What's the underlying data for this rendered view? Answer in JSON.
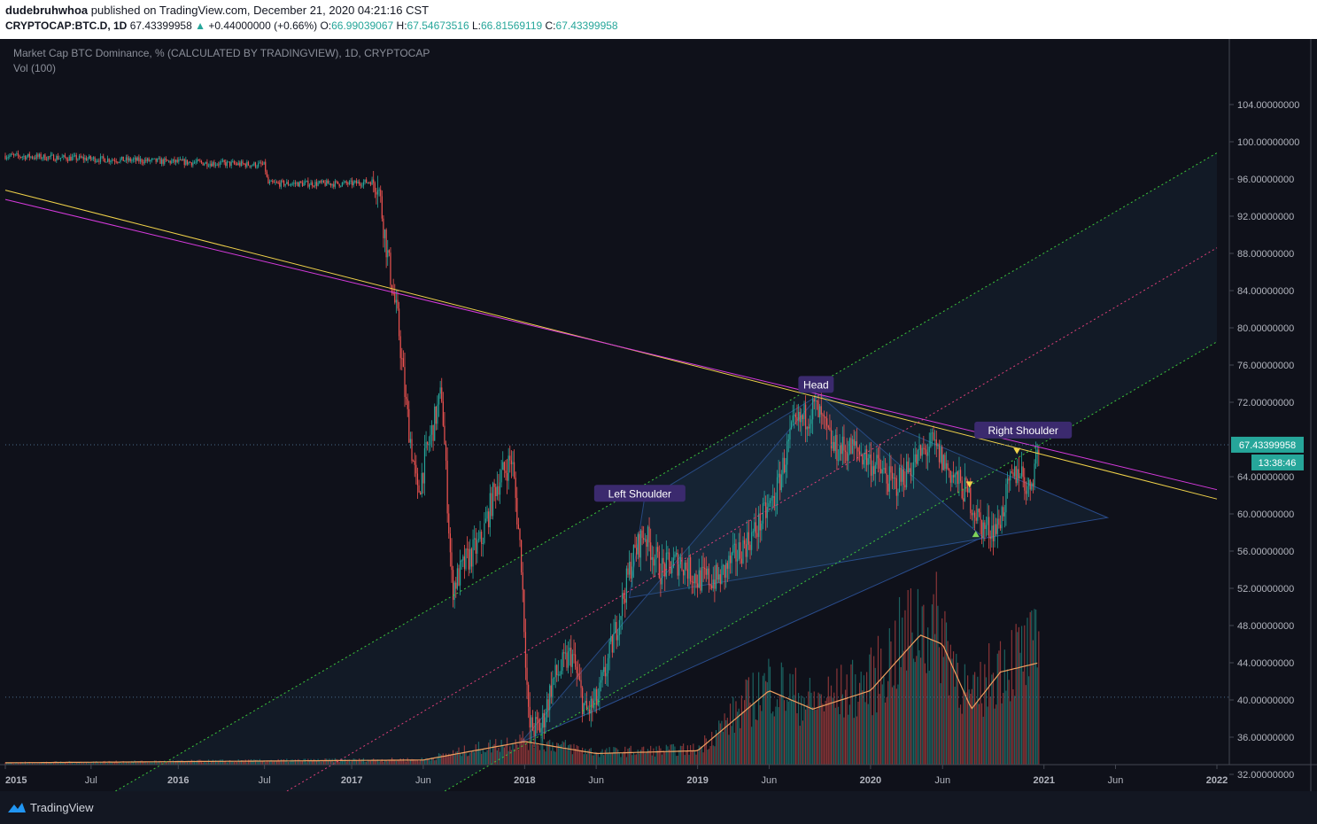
{
  "header": {
    "author": "dudebruhwhoa",
    "published_text": "published on TradingView.com, December 21, 2020 04:21:16 CST",
    "symbol": "CRYPTOCAP:BTC.D, 1D",
    "last": "67.43399958",
    "change": "+0.44000000 (+0.66%)",
    "open_label": "O:",
    "open": "66.99039067",
    "high_label": "H:",
    "high": "67.54673516",
    "low_label": "L:",
    "low": "66.81569119",
    "close_label": "C:",
    "close": "67.43399958"
  },
  "legend": {
    "title": "Market Cap BTC Dominance, % (CALCULATED BY TRADINGVIEW), 1D, CRYPTOCAP",
    "volume": "Vol (100)"
  },
  "footer": {
    "brand": "TradingView"
  },
  "colors": {
    "background": "#0f111a",
    "up": "#26a69a",
    "down": "#ef5350",
    "yellow_trend": "#f0d24a",
    "magenta_trend": "#d53adc",
    "channel_green": "#3cc83c",
    "channel_mid": "#e0407a",
    "label_bg": "#3b2a6e",
    "price_tag": "#26a69a",
    "vol_ma": "#f0a060"
  },
  "chart_data": {
    "type": "candlestick",
    "y_axis": {
      "ticks": [
        "104.00000000",
        "100.00000000",
        "96.00000000",
        "92.00000000",
        "88.00000000",
        "84.00000000",
        "80.00000000",
        "76.00000000",
        "72.00000000",
        "64.00000000",
        "60.00000000",
        "56.00000000",
        "52.00000000",
        "48.00000000",
        "44.00000000",
        "40.00000000",
        "36.00000000",
        "32.00000000"
      ],
      "range": [
        29,
        106
      ]
    },
    "x_axis": {
      "ticks": [
        "2015",
        "Jul",
        "2016",
        "Jul",
        "2017",
        "Jun",
        "2018",
        "Jun",
        "2019",
        "Jun",
        "2020",
        "Jun",
        "2021",
        "Jun",
        "2022"
      ],
      "tick_dates": [
        "2015-01-01",
        "2015-07-01",
        "2016-01-01",
        "2016-07-01",
        "2017-01-01",
        "2017-06-01",
        "2018-01-01",
        "2018-06-01",
        "2019-01-01",
        "2019-06-01",
        "2020-01-01",
        "2020-06-01",
        "2021-01-01",
        "2021-06-01",
        "2022-01-01"
      ]
    },
    "last_price_tag": "67.43399958",
    "countdown_tag": "13:38:46",
    "annotations": [
      {
        "text": "Left Shoulder",
        "date": "2018-09-01",
        "value": 61.5
      },
      {
        "text": "Head",
        "date": "2019-09-08",
        "value": 73.2
      },
      {
        "text": "Right Shoulder",
        "date": "2020-11-18",
        "value": 68.3
      }
    ],
    "key_points": [
      {
        "date": "2015-01-01",
        "value": 98.5
      },
      {
        "date": "2016-07-01",
        "value": 97.5
      },
      {
        "date": "2016-07-08",
        "value": 95.5
      },
      {
        "date": "2017-01-01",
        "value": 95.5
      },
      {
        "date": "2017-02-25",
        "value": 95.8
      },
      {
        "date": "2017-03-20",
        "value": 87
      },
      {
        "date": "2017-04-10",
        "value": 80
      },
      {
        "date": "2017-04-25",
        "value": 72
      },
      {
        "date": "2017-05-20",
        "value": 62
      },
      {
        "date": "2017-06-10",
        "value": 67
      },
      {
        "date": "2017-07-10",
        "value": 73
      },
      {
        "date": "2017-08-01",
        "value": 52
      },
      {
        "date": "2017-09-01",
        "value": 55
      },
      {
        "date": "2017-10-01",
        "value": 57
      },
      {
        "date": "2017-11-01",
        "value": 63
      },
      {
        "date": "2017-12-05",
        "value": 66
      },
      {
        "date": "2017-12-25",
        "value": 55
      },
      {
        "date": "2018-01-10",
        "value": 37
      },
      {
        "date": "2018-02-05",
        "value": 37
      },
      {
        "date": "2018-03-01",
        "value": 42
      },
      {
        "date": "2018-04-10",
        "value": 45
      },
      {
        "date": "2018-05-10",
        "value": 38.5
      },
      {
        "date": "2018-06-05",
        "value": 40
      },
      {
        "date": "2018-07-10",
        "value": 47
      },
      {
        "date": "2018-08-15",
        "value": 55
      },
      {
        "date": "2018-09-10",
        "value": 58
      },
      {
        "date": "2018-10-15",
        "value": 54
      },
      {
        "date": "2018-11-25",
        "value": 55
      },
      {
        "date": "2019-01-01",
        "value": 53
      },
      {
        "date": "2019-02-15",
        "value": 53
      },
      {
        "date": "2019-03-15",
        "value": 55
      },
      {
        "date": "2019-05-01",
        "value": 58
      },
      {
        "date": "2019-06-15",
        "value": 62
      },
      {
        "date": "2019-07-20",
        "value": 69
      },
      {
        "date": "2019-09-06",
        "value": 71.5
      },
      {
        "date": "2019-10-15",
        "value": 67
      },
      {
        "date": "2019-12-01",
        "value": 67
      },
      {
        "date": "2020-01-15",
        "value": 65
      },
      {
        "date": "2020-02-20",
        "value": 63
      },
      {
        "date": "2020-04-10",
        "value": 66
      },
      {
        "date": "2020-05-10",
        "value": 67.5
      },
      {
        "date": "2020-06-10",
        "value": 65
      },
      {
        "date": "2020-07-25",
        "value": 62
      },
      {
        "date": "2020-08-25",
        "value": 58.5
      },
      {
        "date": "2020-09-25",
        "value": 58.5
      },
      {
        "date": "2020-10-20",
        "value": 63
      },
      {
        "date": "2020-11-10",
        "value": 65
      },
      {
        "date": "2020-11-30",
        "value": 62.5
      },
      {
        "date": "2020-12-21",
        "value": 67.4
      }
    ],
    "volume_key_points": [
      {
        "date": "2015-01-01",
        "value": 0.2
      },
      {
        "date": "2017-06-01",
        "value": 0.5
      },
      {
        "date": "2018-01-01",
        "value": 2.5
      },
      {
        "date": "2018-06-01",
        "value": 1.2
      },
      {
        "date": "2019-01-01",
        "value": 1.5
      },
      {
        "date": "2019-06-01",
        "value": 8
      },
      {
        "date": "2019-09-01",
        "value": 6
      },
      {
        "date": "2020-01-01",
        "value": 8
      },
      {
        "date": "2020-04-15",
        "value": 14
      },
      {
        "date": "2020-06-01",
        "value": 13
      },
      {
        "date": "2020-08-01",
        "value": 6
      },
      {
        "date": "2020-10-01",
        "value": 10
      },
      {
        "date": "2020-12-21",
        "value": 11
      }
    ],
    "lines": [
      {
        "name": "yellow-trendline",
        "points": [
          [
            "2015-01-01",
            94.8
          ],
          [
            "2022-01-01",
            61.6
          ]
        ]
      },
      {
        "name": "magenta-trendline",
        "points": [
          [
            "2015-01-01",
            93.8
          ],
          [
            "2022-01-01",
            62.6
          ]
        ]
      },
      {
        "name": "channel-upper",
        "points": [
          [
            "2015-07-12",
            29
          ],
          [
            "2022-01-01",
            98.8
          ]
        ]
      },
      {
        "name": "channel-middle",
        "points": [
          [
            "2016-07-08",
            29
          ],
          [
            "2022-01-01",
            88.6
          ]
        ]
      },
      {
        "name": "channel-lower",
        "points": [
          [
            "2017-06-06",
            29
          ],
          [
            "2022-01-01",
            78.5
          ]
        ]
      }
    ],
    "triangles": [
      [
        [
          "2018-09-10",
          61.4
        ],
        [
          "2019-09-15",
          72.8
        ],
        [
          "2021-05-15",
          59.6
        ],
        [
          "2018-08-10",
          51
        ]
      ],
      [
        [
          "2017-12-25",
          35.5
        ],
        [
          "2019-09-15",
          72.8
        ],
        [
          "2020-08-25",
          57.5
        ],
        [
          "2018-06-05",
          39
        ]
      ]
    ],
    "markers": [
      {
        "type": "triangle-down",
        "date": "2020-07-28",
        "value": 63.2,
        "color": "#f0d24a"
      },
      {
        "type": "triangle-up",
        "date": "2020-08-10",
        "value": 57.8,
        "color": "#7fd45a"
      },
      {
        "type": "triangle-down",
        "date": "2020-11-05",
        "value": 66.8,
        "color": "#f0d24a"
      }
    ]
  }
}
